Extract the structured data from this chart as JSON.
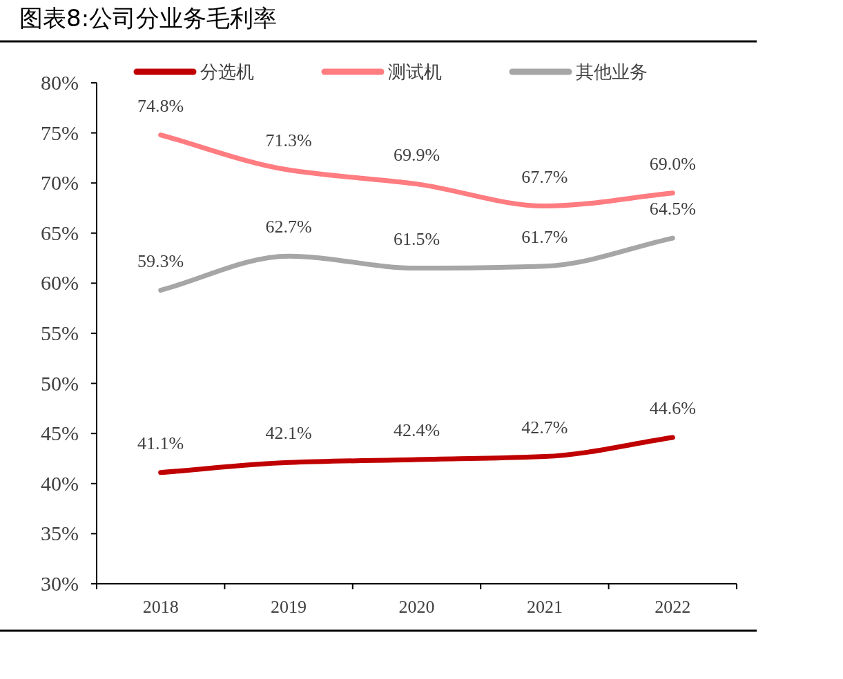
{
  "chart_data": {
    "type": "line",
    "title": "图表8:公司分业务毛利率",
    "categories": [
      "2018",
      "2019",
      "2020",
      "2021",
      "2022"
    ],
    "series": [
      {
        "name": "分选机",
        "color": "#c00000",
        "values": [
          41.1,
          42.1,
          42.4,
          42.7,
          44.6
        ],
        "value_labels": [
          "41.1%",
          "42.1%",
          "42.4%",
          "42.7%",
          "44.6%"
        ]
      },
      {
        "name": "测试机",
        "color": "#ff7c80",
        "values": [
          74.8,
          71.3,
          69.9,
          67.7,
          69.0
        ],
        "value_labels": [
          "74.8%",
          "71.3%",
          "69.9%",
          "67.7%",
          "69.0%"
        ]
      },
      {
        "name": "其他业务",
        "color": "#a6a6a6",
        "values": [
          59.3,
          62.7,
          61.5,
          61.7,
          64.5
        ],
        "value_labels": [
          "59.3%",
          "62.7%",
          "61.5%",
          "61.7%",
          "64.5%"
        ]
      }
    ],
    "ylim": [
      30,
      80
    ],
    "yticks": [
      {
        "value": 30,
        "label": "30%"
      },
      {
        "value": 35,
        "label": "35%"
      },
      {
        "value": 40,
        "label": "40%"
      },
      {
        "value": 45,
        "label": "45%"
      },
      {
        "value": 50,
        "label": "50%"
      },
      {
        "value": 55,
        "label": "55%"
      },
      {
        "value": 60,
        "label": "60%"
      },
      {
        "value": 65,
        "label": "65%"
      },
      {
        "value": 70,
        "label": "70%"
      },
      {
        "value": 75,
        "label": "75%"
      },
      {
        "value": 80,
        "label": "80%"
      }
    ],
    "legend": "top",
    "marker": "none",
    "line_style": "solid",
    "grid": false
  }
}
